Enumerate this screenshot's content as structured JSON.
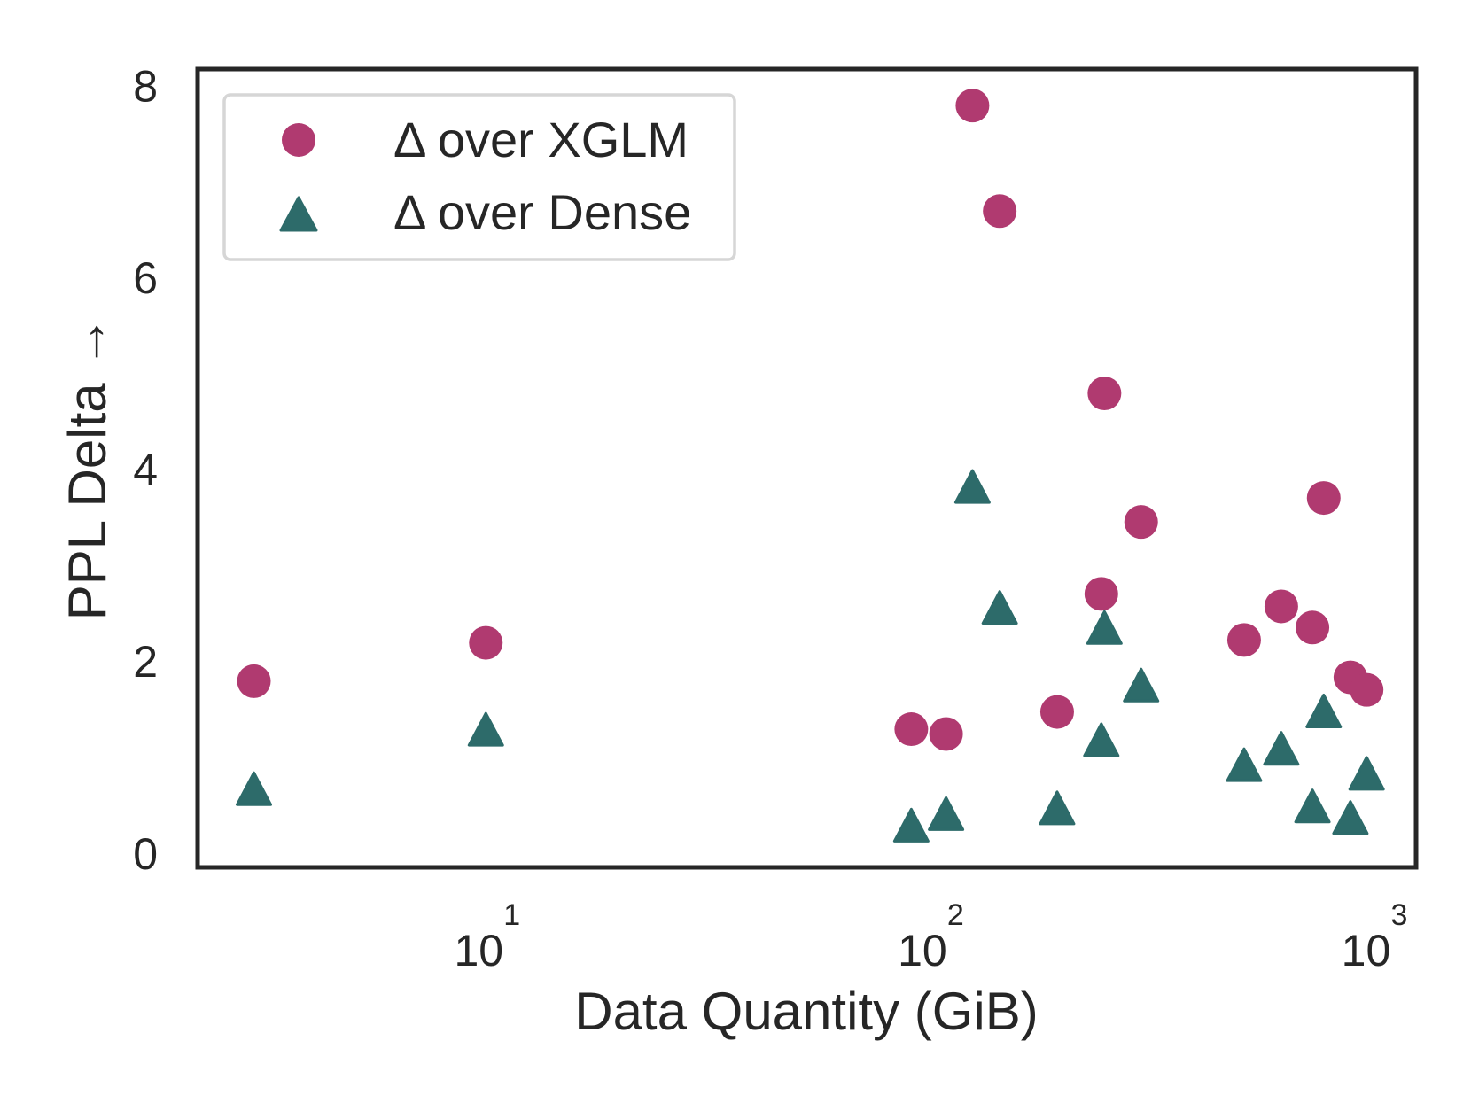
{
  "chart_data": {
    "type": "scatter",
    "xlabel": "Data Quantity (GiB)",
    "ylabel": "PPL Delta →",
    "xscale": "log",
    "xlim": [
      2.24,
      1250
    ],
    "ylim": [
      -0.15,
      8.17
    ],
    "xticks": [
      {
        "base": "10",
        "exp": "1",
        "value": 10
      },
      {
        "base": "10",
        "exp": "2",
        "value": 100
      },
      {
        "base": "10",
        "exp": "3",
        "value": 1000
      }
    ],
    "yticks": [
      "0",
      "2",
      "4",
      "6",
      "8"
    ],
    "grid": false,
    "legend_position": "top-left",
    "series": [
      {
        "name": "Δ over XGLM",
        "marker": "circle",
        "color": "#B03A70",
        "x": [
          3,
          10,
          91,
          109,
          125,
          144,
          194,
          248,
          244,
          300,
          512,
          621,
          730,
          774,
          889,
          967
        ],
        "y": [
          1.79,
          2.19,
          1.29,
          1.24,
          7.79,
          6.69,
          1.47,
          4.79,
          2.7,
          3.45,
          2.22,
          2.57,
          2.35,
          3.7,
          1.83,
          1.7
        ]
      },
      {
        "name": "Δ over Dense",
        "marker": "triangle",
        "color": "#2D6B6A",
        "x": [
          3,
          10,
          91,
          109,
          125,
          144,
          194,
          248,
          244,
          300,
          512,
          621,
          730,
          774,
          889,
          967
        ],
        "y": [
          0.63,
          1.25,
          0.25,
          0.37,
          3.78,
          2.52,
          0.43,
          2.31,
          1.14,
          1.71,
          0.88,
          1.05,
          0.45,
          1.44,
          0.33,
          0.79
        ]
      }
    ]
  }
}
